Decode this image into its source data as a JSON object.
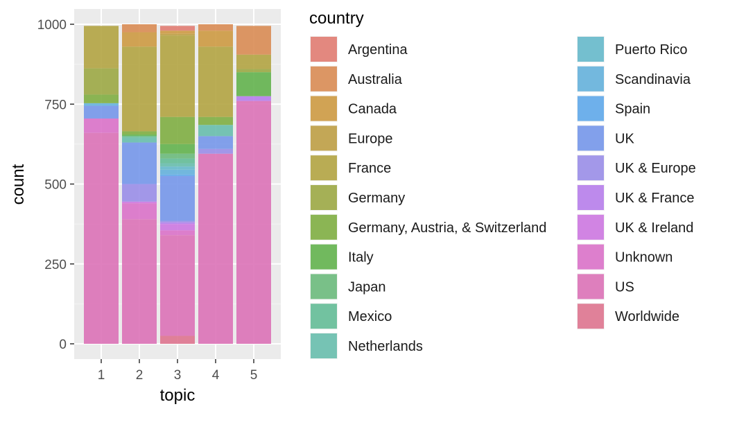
{
  "chart_data": {
    "type": "bar",
    "stacked": true,
    "xlabel": "topic",
    "ylabel": "count",
    "categories": [
      "1",
      "2",
      "3",
      "4",
      "5"
    ],
    "ylim": [
      0,
      1000
    ],
    "yticks": [
      0,
      250,
      500,
      750,
      1000
    ],
    "grid": true,
    "legend": {
      "title": "country",
      "placement": "right",
      "columns": 2
    },
    "stack_order_bottom_to_top": [
      "Worldwide",
      "US",
      "Unknown",
      "UK & Ireland",
      "UK & France",
      "UK & Europe",
      "UK",
      "Spain",
      "Scandinavia",
      "Puerto Rico",
      "Netherlands",
      "Mexico",
      "Japan",
      "Italy",
      "Germany, Austria, & Switzerland",
      "Germany",
      "France",
      "Europe",
      "Canada",
      "Australia",
      "Argentina"
    ],
    "series": [
      {
        "name": "Argentina",
        "color": "#E17C72",
        "values": [
          0,
          0,
          15,
          0,
          0
        ]
      },
      {
        "name": "Australia",
        "color": "#D98C54",
        "values": [
          0,
          25,
          0,
          20,
          90
        ]
      },
      {
        "name": "Canada",
        "color": "#CD9A43",
        "values": [
          0,
          45,
          10,
          50,
          0
        ]
      },
      {
        "name": "Europe",
        "color": "#BE9F45",
        "values": [
          0,
          0,
          5,
          0,
          0
        ]
      },
      {
        "name": "France",
        "color": "#B3A443",
        "values": [
          133,
          265,
          255,
          220,
          45
        ]
      },
      {
        "name": "Germany",
        "color": "#9CA845",
        "values": [
          82,
          0,
          0,
          0,
          10
        ]
      },
      {
        "name": "Germany, Austria, & Switzerland",
        "color": "#7FAE43",
        "values": [
          27,
          10,
          85,
          25,
          0
        ]
      },
      {
        "name": "Italy",
        "color": "#63B34E",
        "values": [
          0,
          5,
          30,
          0,
          75
        ]
      },
      {
        "name": "Japan",
        "color": "#6CBA7C",
        "values": [
          0,
          0,
          15,
          0,
          0
        ]
      },
      {
        "name": "Mexico",
        "color": "#64BC97",
        "values": [
          0,
          5,
          15,
          0,
          0
        ]
      },
      {
        "name": "Netherlands",
        "color": "#68BEAD",
        "values": [
          0,
          15,
          10,
          35,
          0
        ]
      },
      {
        "name": "Puerto Rico",
        "color": "#66B9CB",
        "values": [
          0,
          0,
          10,
          0,
          0
        ]
      },
      {
        "name": "Scandinavia",
        "color": "#65B1DC",
        "values": [
          8,
          0,
          15,
          0,
          0
        ]
      },
      {
        "name": "Spain",
        "color": "#5FA8EA",
        "values": [
          0,
          0,
          5,
          0,
          0
        ]
      },
      {
        "name": "UK",
        "color": "#7597EA",
        "values": [
          40,
          130,
          140,
          40,
          0
        ]
      },
      {
        "name": "UK & Europe",
        "color": "#9A8EE8",
        "values": [
          0,
          55,
          5,
          15,
          0
        ]
      },
      {
        "name": "UK & France",
        "color": "#B77EEB",
        "values": [
          0,
          0,
          5,
          0,
          15
        ]
      },
      {
        "name": "UK & Ireland",
        "color": "#CD78E1",
        "values": [
          0,
          5,
          20,
          0,
          0
        ]
      },
      {
        "name": "Unknown",
        "color": "#DA72C9",
        "values": [
          45,
          50,
          15,
          0,
          0
        ]
      },
      {
        "name": "US",
        "color": "#DC72B7",
        "values": [
          660,
          390,
          315,
          595,
          760
        ]
      },
      {
        "name": "Worldwide",
        "color": "#DE748F",
        "values": [
          0,
          0,
          25,
          0,
          0
        ]
      }
    ]
  }
}
